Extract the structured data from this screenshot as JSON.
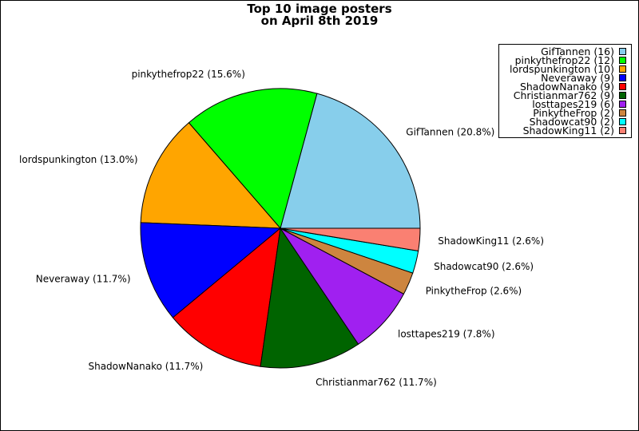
{
  "chart_data": {
    "type": "pie",
    "title_line1": "Top 10 image posters",
    "title_line2": "on April 8th 2019",
    "slices": [
      {
        "label": "GifTannen",
        "count": 16,
        "percent_label": "GifTannen (20.8%)",
        "legend_label": "GifTannen (16)",
        "color": "#87ceeb"
      },
      {
        "label": "pinkythefrop22",
        "count": 12,
        "percent_label": "pinkythefrop22 (15.6%)",
        "legend_label": "pinkythefrop22 (12)",
        "color": "#00ff00"
      },
      {
        "label": "lordspunkington",
        "count": 10,
        "percent_label": "lordspunkington (13.0%)",
        "legend_label": "lordspunkington (10)",
        "color": "#ffa500"
      },
      {
        "label": "Neveraway",
        "count": 9,
        "percent_label": "Neveraway (11.7%)",
        "legend_label": "Neveraway (9)",
        "color": "#0000ff"
      },
      {
        "label": "ShadowNanako",
        "count": 9,
        "percent_label": "ShadowNanako (11.7%)",
        "legend_label": "ShadowNanako (9)",
        "color": "#ff0000"
      },
      {
        "label": "Christianmar762",
        "count": 9,
        "percent_label": "Christianmar762 (11.7%)",
        "legend_label": "Christianmar762 (9)",
        "color": "#006400"
      },
      {
        "label": "losttapes219",
        "count": 6,
        "percent_label": "losttapes219 (7.8%)",
        "legend_label": "losttapes219 (6)",
        "color": "#a020f0"
      },
      {
        "label": "PinkytheFrop",
        "count": 2,
        "percent_label": "PinkytheFrop (2.6%)",
        "legend_label": "PinkytheFrop (2)",
        "color": "#cd853f"
      },
      {
        "label": "Shadowcat90",
        "count": 2,
        "percent_label": "Shadowcat90 (2.6%)",
        "legend_label": "Shadowcat90 (2)",
        "color": "#00ffff"
      },
      {
        "label": "ShadowKing11",
        "count": 2,
        "percent_label": "ShadowKing11 (2.6%)",
        "legend_label": "ShadowKing11 (2)",
        "color": "#fa8072"
      }
    ],
    "start_angle_deg": 0,
    "direction": "counterclockwise",
    "legend_position": "top-right"
  }
}
